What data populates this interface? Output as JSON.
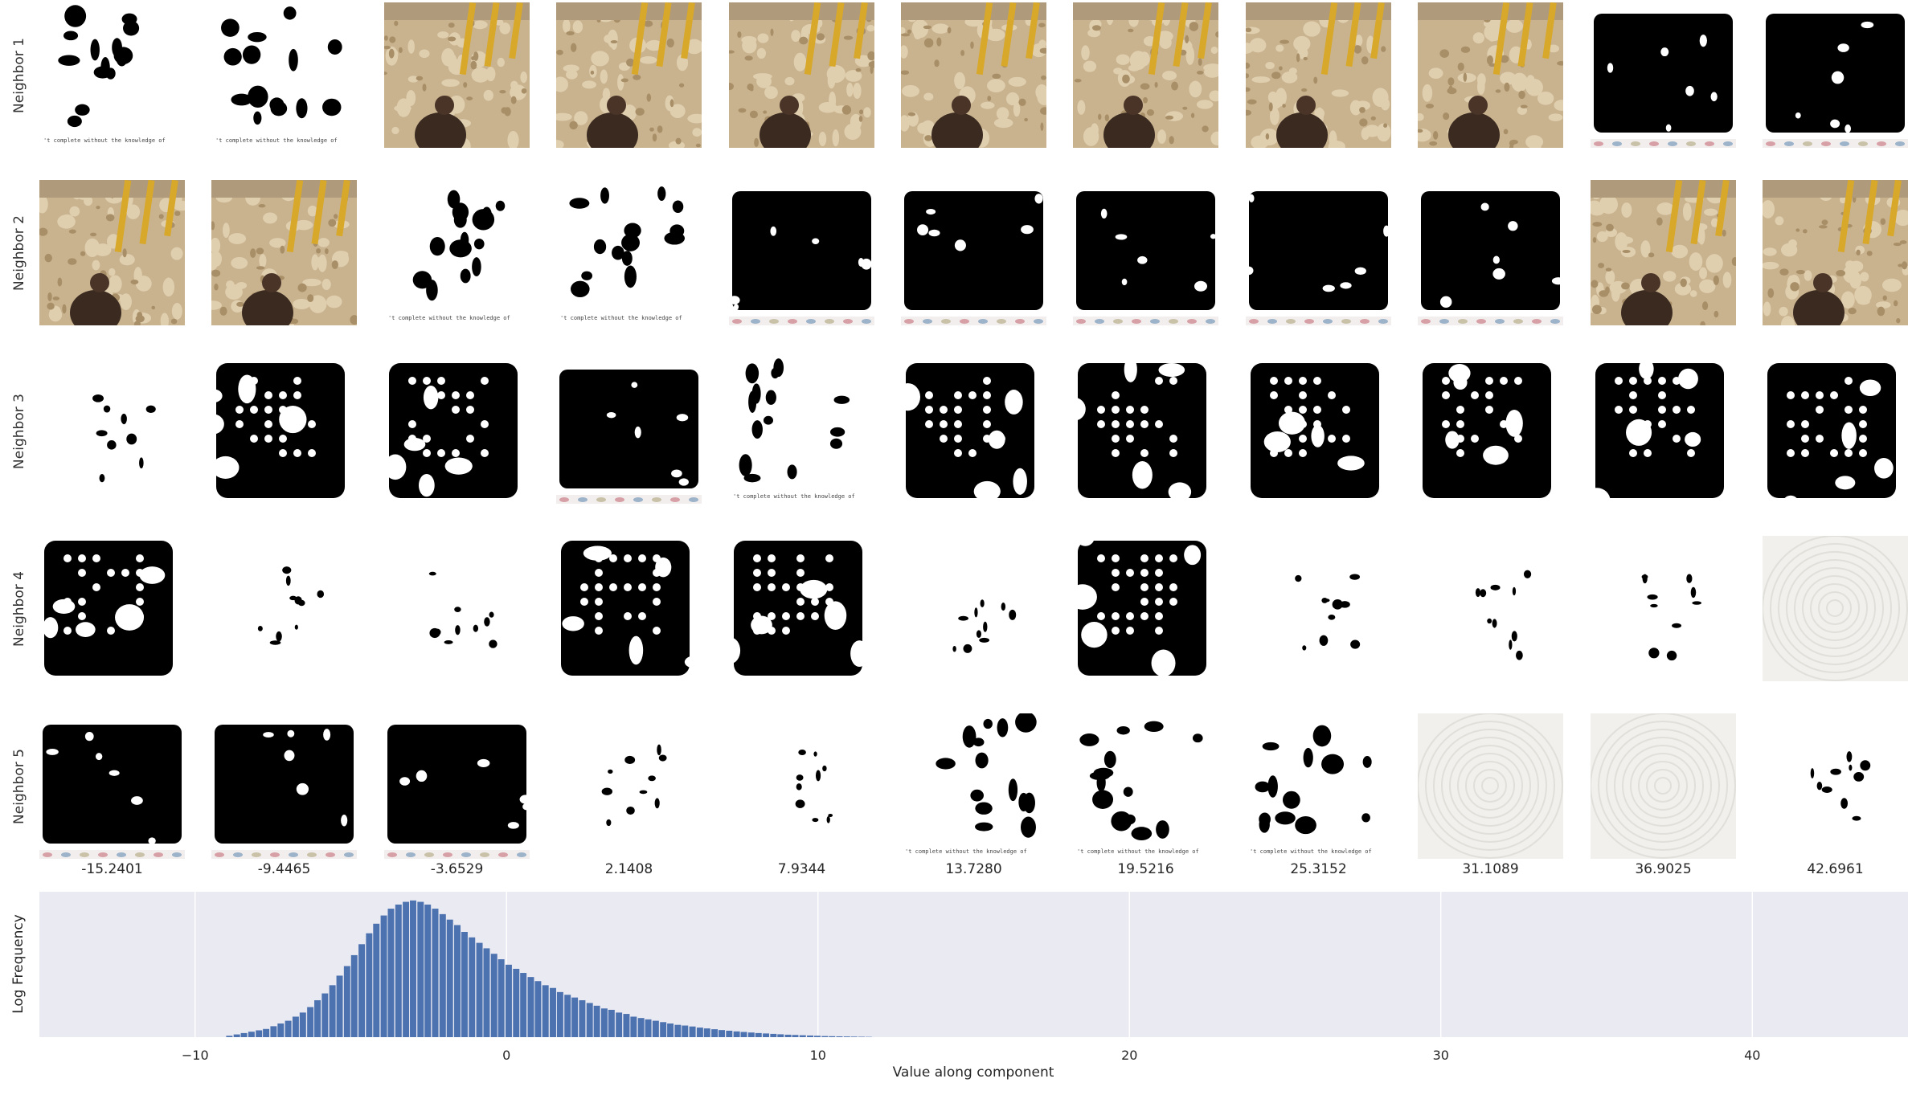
{
  "rows": [
    "Neighbor 1",
    "Neighbor 2",
    "Neighbor 3",
    "Neighbor 4",
    "Neighbor 5"
  ],
  "column_values": [
    "-15.2401",
    "-9.4465",
    "-3.6529",
    "2.1408",
    "7.9344",
    "13.7280",
    "19.5216",
    "25.3152",
    "31.1089",
    "36.9025",
    "42.6961"
  ],
  "tile_text": "'t complete without the knowledge of",
  "thumbnail_kinds": [
    [
      "mask-white",
      "mask-white",
      "sand",
      "sand",
      "sand",
      "sand",
      "sand",
      "sand",
      "sand",
      "mask-black",
      "mask-black"
    ],
    [
      "sand",
      "sand",
      "mask-white",
      "mask-white",
      "mask-black",
      "mask-black",
      "mask-black",
      "mask-black",
      "mask-black",
      "sand",
      "sand"
    ],
    [
      "sparse",
      "grid",
      "grid",
      "mask-black",
      "mask-white",
      "grid",
      "grid",
      "grid",
      "grid",
      "grid",
      "grid"
    ],
    [
      "grid",
      "sparse",
      "sparse",
      "grid",
      "grid",
      "sparse",
      "grid",
      "sparse",
      "sparse",
      "sparse",
      "texture"
    ],
    [
      "mask-black",
      "mask-black",
      "mask-black",
      "sparse",
      "sparse",
      "mask-white",
      "mask-white",
      "mask-white",
      "texture",
      "texture",
      "sparse"
    ]
  ],
  "chart_data": {
    "type": "bar",
    "xlabel": "Value along component",
    "ylabel": "Log Frequency",
    "xlim": [
      -15,
      45
    ],
    "xticks": [
      -10,
      0,
      10,
      20,
      30,
      40
    ],
    "grid": true,
    "bar_color": "#4c72b0",
    "background_color": "#eaeaf2",
    "bin_width": 0.236,
    "x": [
      -8.9,
      -8.66,
      -8.43,
      -8.19,
      -7.95,
      -7.72,
      -7.48,
      -7.25,
      -7.01,
      -6.77,
      -6.54,
      -6.3,
      -6.07,
      -5.83,
      -5.59,
      -5.36,
      -5.12,
      -4.89,
      -4.65,
      -4.41,
      -4.18,
      -3.94,
      -3.71,
      -3.47,
      -3.23,
      -3.0,
      -2.76,
      -2.53,
      -2.29,
      -2.05,
      -1.82,
      -1.58,
      -1.35,
      -1.11,
      -0.87,
      -0.64,
      -0.4,
      -0.17,
      0.07,
      0.31,
      0.54,
      0.78,
      1.01,
      1.25,
      1.49,
      1.72,
      1.96,
      2.19,
      2.43,
      2.67,
      2.9,
      3.14,
      3.37,
      3.61,
      3.85,
      4.08,
      4.32,
      4.55,
      4.79,
      5.03,
      5.26,
      5.5,
      5.73,
      5.97,
      6.21,
      6.44,
      6.68,
      6.91,
      7.15,
      7.39,
      7.62,
      7.86,
      8.09,
      8.33,
      8.57,
      8.8,
      9.04,
      9.27,
      9.51,
      9.75,
      9.98,
      10.22,
      10.45,
      10.69,
      10.93,
      11.16,
      11.4,
      11.63
    ],
    "values": [
      0.01,
      0.02,
      0.03,
      0.04,
      0.05,
      0.06,
      0.08,
      0.1,
      0.12,
      0.15,
      0.18,
      0.22,
      0.27,
      0.32,
      0.38,
      0.45,
      0.52,
      0.6,
      0.68,
      0.76,
      0.83,
      0.89,
      0.94,
      0.97,
      0.99,
      1.0,
      0.99,
      0.97,
      0.94,
      0.9,
      0.86,
      0.82,
      0.77,
      0.73,
      0.69,
      0.65,
      0.61,
      0.57,
      0.53,
      0.5,
      0.47,
      0.44,
      0.41,
      0.38,
      0.36,
      0.33,
      0.31,
      0.29,
      0.27,
      0.25,
      0.23,
      0.21,
      0.2,
      0.18,
      0.17,
      0.15,
      0.14,
      0.13,
      0.12,
      0.11,
      0.1,
      0.09,
      0.085,
      0.078,
      0.07,
      0.064,
      0.058,
      0.052,
      0.047,
      0.042,
      0.038,
      0.034,
      0.03,
      0.027,
      0.024,
      0.021,
      0.018,
      0.016,
      0.014,
      0.012,
      0.01,
      0.008,
      0.007,
      0.006,
      0.005,
      0.004,
      0.003,
      0.002
    ]
  }
}
